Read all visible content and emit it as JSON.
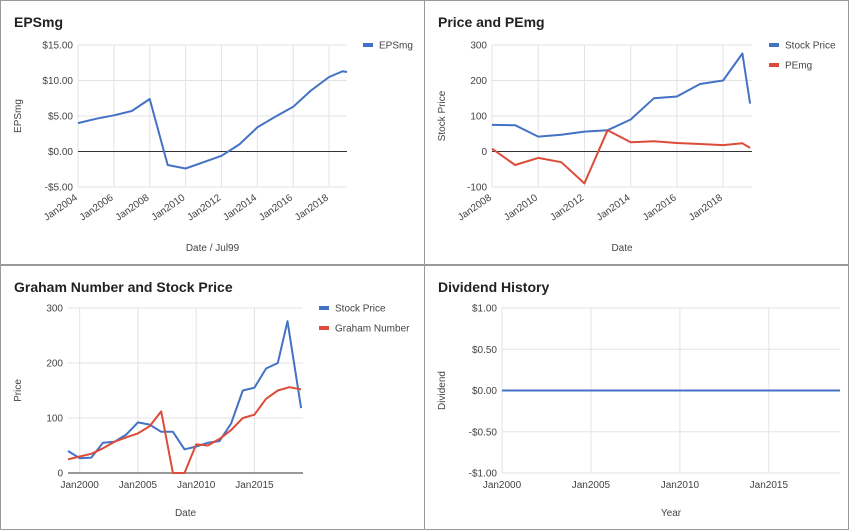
{
  "chart_data": [
    {
      "id": "eps",
      "type": "line",
      "title": "EPSmg",
      "xlabel": "Date / Jul99",
      "ylabel": "EPSmg",
      "x_type": "date",
      "xlim": [
        "2004-01",
        "2019-01"
      ],
      "ylim": [
        -5,
        15
      ],
      "y_ticks": [
        -5,
        0,
        5,
        10,
        15
      ],
      "y_tick_labels": [
        "-$5.00",
        "$0.00",
        "$5.00",
        "$10.00",
        "$15.00"
      ],
      "x_tick_labels": [
        "Jan2004",
        "Jan2006",
        "Jan2008",
        "Jan2010",
        "Jan2012",
        "Jan2014",
        "Jan2016",
        "Jan2018"
      ],
      "x_tick_values": [
        "2004-01",
        "2006-01",
        "2008-01",
        "2010-01",
        "2012-01",
        "2014-01",
        "2016-01",
        "2018-01"
      ],
      "x_labels_rotated": true,
      "legend": "right",
      "series": [
        {
          "name": "EPSmg",
          "color": "#4472c4",
          "points": [
            [
              "2004-01",
              4.0
            ],
            [
              "2005-01",
              4.6
            ],
            [
              "2006-01",
              5.1
            ],
            [
              "2007-01",
              5.7
            ],
            [
              "2008-01",
              7.4
            ],
            [
              "2009-01",
              -1.9
            ],
            [
              "2010-01",
              -2.4
            ],
            [
              "2011-01",
              -1.5
            ],
            [
              "2012-01",
              -0.6
            ],
            [
              "2013-01",
              1.0
            ],
            [
              "2014-01",
              3.4
            ],
            [
              "2015-01",
              4.9
            ],
            [
              "2016-01",
              6.3
            ],
            [
              "2017-01",
              8.6
            ],
            [
              "2018-01",
              10.5
            ],
            [
              "2018-10",
              11.3
            ],
            [
              "2019-01",
              11.2
            ]
          ]
        }
      ]
    },
    {
      "id": "price-pe",
      "type": "line",
      "title": "Price and PEmg",
      "xlabel": "Date",
      "ylabel": "Stock Price",
      "x_type": "date",
      "xlim": [
        "2008-01",
        "2019-04"
      ],
      "ylim": [
        -100,
        300
      ],
      "y_ticks": [
        -100,
        0,
        100,
        200,
        300
      ],
      "y_tick_labels": [
        "-100",
        "0",
        "100",
        "200",
        "300"
      ],
      "x_tick_labels": [
        "Jan2008",
        "Jan2010",
        "Jan2012",
        "Jan2014",
        "Jan2016",
        "Jan2018"
      ],
      "x_tick_values": [
        "2008-01",
        "2010-01",
        "2012-01",
        "2014-01",
        "2016-01",
        "2018-01"
      ],
      "x_labels_rotated": true,
      "legend": "right",
      "series": [
        {
          "name": "Stock Price",
          "color": "#4472c4",
          "points": [
            [
              "2008-01",
              75
            ],
            [
              "2009-01",
              74
            ],
            [
              "2010-01",
              42
            ],
            [
              "2011-01",
              47
            ],
            [
              "2012-01",
              56
            ],
            [
              "2013-01",
              60
            ],
            [
              "2014-01",
              90
            ],
            [
              "2015-01",
              150
            ],
            [
              "2016-01",
              155
            ],
            [
              "2017-01",
              190
            ],
            [
              "2018-01",
              200
            ],
            [
              "2018-11",
              276
            ],
            [
              "2019-03",
              135
            ]
          ]
        },
        {
          "name": "PEmg",
          "color": "#dd4b39",
          "points": [
            [
              "2008-01",
              8
            ],
            [
              "2009-01",
              -38
            ],
            [
              "2010-01",
              -18
            ],
            [
              "2011-01",
              -30
            ],
            [
              "2012-01",
              -90
            ],
            [
              "2013-01",
              60
            ],
            [
              "2014-01",
              26
            ],
            [
              "2015-01",
              29
            ],
            [
              "2016-01",
              24
            ],
            [
              "2017-01",
              21
            ],
            [
              "2018-01",
              18
            ],
            [
              "2018-11",
              23
            ],
            [
              "2019-03",
              10
            ]
          ]
        }
      ]
    },
    {
      "id": "graham",
      "type": "line",
      "title": "Graham Number and Stock Price",
      "xlabel": "Date",
      "ylabel": "Price",
      "x_type": "date",
      "xlim": [
        "1999-01",
        "2019-03"
      ],
      "ylim": [
        0,
        300
      ],
      "y_ticks": [
        0,
        100,
        200,
        300
      ],
      "y_tick_labels": [
        "0",
        "100",
        "200",
        "300"
      ],
      "x_tick_labels": [
        "Jan2000",
        "Jan2005",
        "Jan2010",
        "Jan2015"
      ],
      "x_tick_values": [
        "2000-01",
        "2005-01",
        "2010-01",
        "2015-01"
      ],
      "x_labels_rotated": false,
      "legend": "right",
      "series": [
        {
          "name": "Stock Price",
          "color": "#4472c4",
          "points": [
            [
              "1999-01",
              40
            ],
            [
              "2000-01",
              27
            ],
            [
              "2001-01",
              28
            ],
            [
              "2002-01",
              55
            ],
            [
              "2003-01",
              57
            ],
            [
              "2004-01",
              70
            ],
            [
              "2005-01",
              92
            ],
            [
              "2006-01",
              88
            ],
            [
              "2007-01",
              75
            ],
            [
              "2008-01",
              75
            ],
            [
              "2009-01",
              43
            ],
            [
              "2010-01",
              48
            ],
            [
              "2011-01",
              55
            ],
            [
              "2012-01",
              58
            ],
            [
              "2013-01",
              90
            ],
            [
              "2014-01",
              150
            ],
            [
              "2015-01",
              155
            ],
            [
              "2016-01",
              190
            ],
            [
              "2017-01",
              200
            ],
            [
              "2017-11",
              276
            ],
            [
              "2019-01",
              118
            ]
          ]
        },
        {
          "name": "Graham Number",
          "color": "#dd4b39",
          "points": [
            [
              "1999-01",
              25
            ],
            [
              "2000-01",
              30
            ],
            [
              "2001-01",
              35
            ],
            [
              "2002-01",
              45
            ],
            [
              "2003-01",
              57
            ],
            [
              "2004-01",
              65
            ],
            [
              "2005-01",
              72
            ],
            [
              "2006-01",
              85
            ],
            [
              "2007-01",
              112
            ],
            [
              "2008-01",
              0
            ],
            [
              "2009-01",
              0
            ],
            [
              "2010-01",
              52
            ],
            [
              "2011-01",
              50
            ],
            [
              "2012-01",
              62
            ],
            [
              "2013-01",
              78
            ],
            [
              "2014-01",
              100
            ],
            [
              "2015-01",
              106
            ],
            [
              "2016-01",
              135
            ],
            [
              "2017-01",
              150
            ],
            [
              "2018-01",
              156
            ],
            [
              "2019-01",
              152
            ]
          ]
        }
      ]
    },
    {
      "id": "dividend",
      "type": "line",
      "title": "Dividend History",
      "xlabel": "Year",
      "ylabel": "Dividend",
      "x_type": "date",
      "xlim": [
        "2000-01",
        "2019-01"
      ],
      "ylim": [
        -1,
        1
      ],
      "y_ticks": [
        -1,
        -0.5,
        0,
        0.5,
        1
      ],
      "y_tick_labels": [
        "-$1.00",
        "-$0.50",
        "$0.00",
        "$0.50",
        "$1.00"
      ],
      "x_tick_labels": [
        "Jan2000",
        "Jan2005",
        "Jan2010",
        "Jan2015"
      ],
      "x_tick_values": [
        "2000-01",
        "2005-01",
        "2010-01",
        "2015-01"
      ],
      "x_labels_rotated": false,
      "legend": "none",
      "series": [
        {
          "color": "#4472c4",
          "points": [
            [
              "2000-01",
              0
            ],
            [
              "2019-01",
              0
            ]
          ]
        }
      ]
    }
  ]
}
